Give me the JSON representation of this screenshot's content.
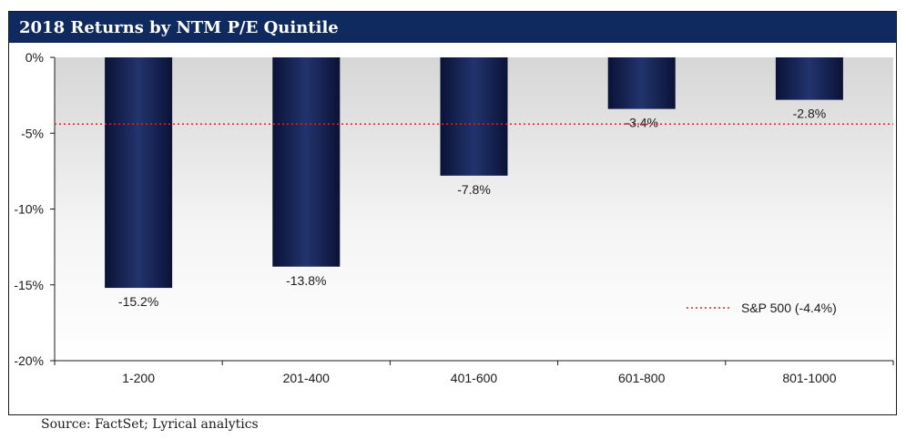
{
  "header": {
    "title": "2018 Returns by NTM P/E Quintile"
  },
  "footer": {
    "source": "Source: FactSet; Lyrical analytics"
  },
  "chart_data": {
    "type": "bar",
    "title": "2018 Returns by NTM P/E Quintile",
    "categories": [
      "1-200",
      "201-400",
      "401-600",
      "601-800",
      "801-1000"
    ],
    "values": [
      -15.2,
      -13.8,
      -7.8,
      -3.4,
      -2.8
    ],
    "data_labels": [
      "-15.2%",
      "-13.8%",
      "-7.8%",
      "-3.4%",
      "-2.8%"
    ],
    "y_ticks": [
      0,
      -5,
      -10,
      -15,
      -20
    ],
    "y_tick_labels": [
      "0%",
      "-5%",
      "-10%",
      "-15%",
      "-20%"
    ],
    "ylim": [
      -20,
      0
    ],
    "xlabel": "",
    "ylabel": "",
    "grid": false,
    "reference_line": {
      "label": "S&P 500 (-4.4%)",
      "value": -4.4,
      "style": "dotted",
      "color": "#d7261e"
    },
    "legend": {
      "position": "lower-right",
      "entries": [
        "S&P 500 (-4.4%)"
      ]
    },
    "colors": {
      "bar": "#0e1a45",
      "bar_highlight": "#22346e",
      "title_bar": "#0e2a5e"
    }
  }
}
